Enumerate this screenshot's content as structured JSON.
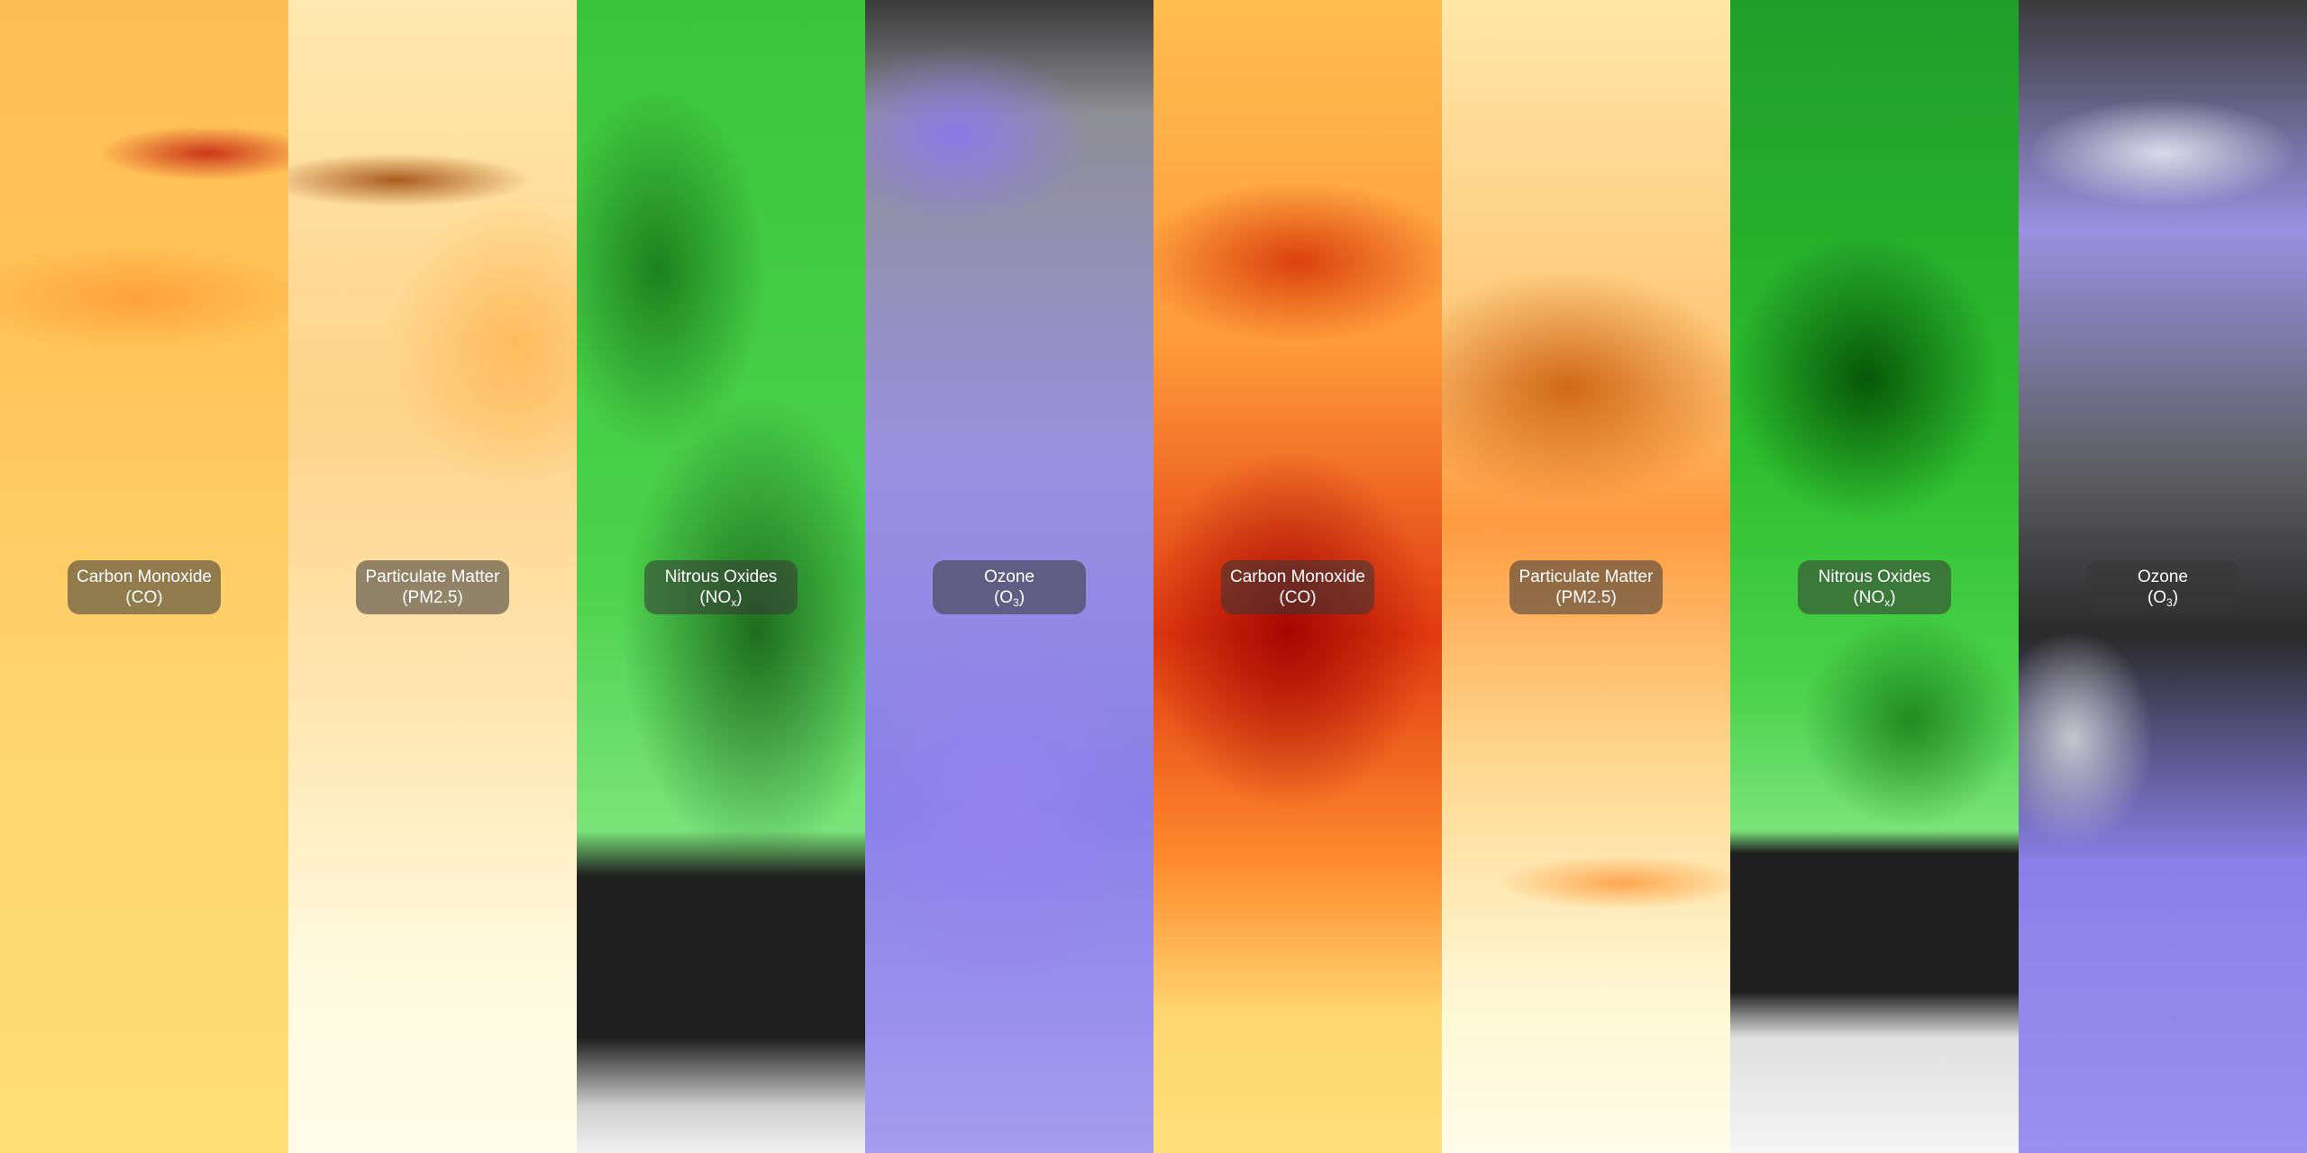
{
  "panels": [
    {
      "name": "Carbon Monoxide",
      "formula": [
        "(CO)"
      ]
    },
    {
      "name": "Particulate Matter",
      "formula": [
        "(PM2.5)"
      ]
    },
    {
      "name": "Nitrous Oxides",
      "formula": [
        "(NO",
        "x",
        ")"
      ]
    },
    {
      "name": "Ozone",
      "formula": [
        "(O",
        "3",
        ")"
      ]
    },
    {
      "name": "Carbon Monoxide",
      "formula": [
        "(CO)"
      ]
    },
    {
      "name": "Particulate Matter",
      "formula": [
        "(PM2.5)"
      ]
    },
    {
      "name": "Nitrous Oxides",
      "formula": [
        "(NO",
        "x",
        ")"
      ]
    },
    {
      "name": "Ozone",
      "formula": [
        "(O",
        "3",
        ")"
      ]
    }
  ]
}
